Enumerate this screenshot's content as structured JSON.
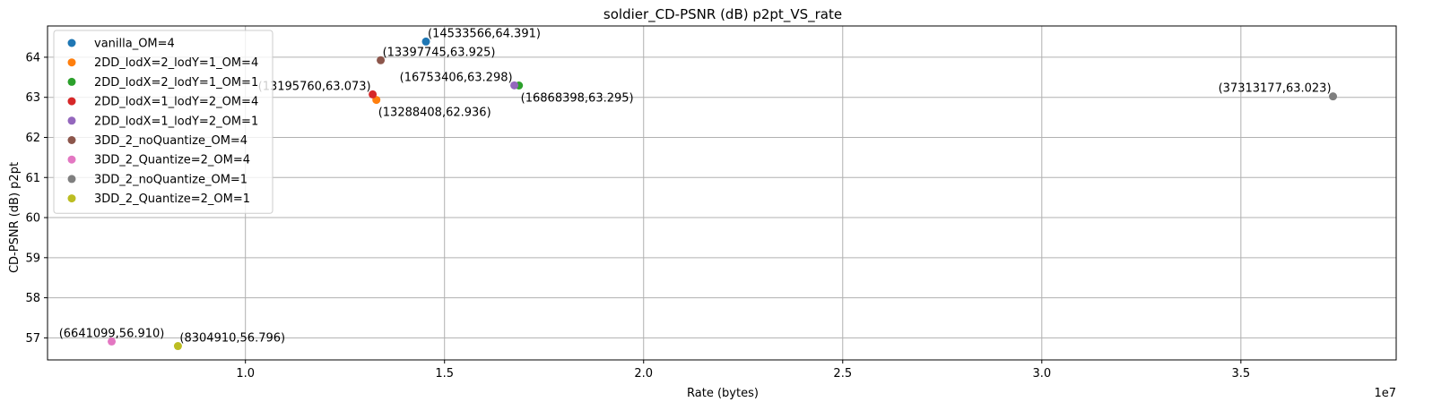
{
  "chart_data": {
    "type": "scatter",
    "title": "soldier_CD-PSNR (dB) p2pt_VS_rate",
    "xlabel": "Rate (bytes)",
    "ylabel": "CD-PSNR (dB) p2pt",
    "x_offset_label": "1e7",
    "xlim": [
      5030000,
      38900000
    ],
    "ylim": [
      56.45,
      64.78
    ],
    "x_ticks": [
      10000000,
      15000000,
      20000000,
      25000000,
      30000000,
      35000000
    ],
    "x_tick_labels": [
      "1.0",
      "1.5",
      "2.0",
      "2.5",
      "3.0",
      "3.5"
    ],
    "y_ticks": [
      57,
      58,
      59,
      60,
      61,
      62,
      63,
      64
    ],
    "y_tick_labels": [
      "57",
      "58",
      "59",
      "60",
      "61",
      "62",
      "63",
      "64"
    ],
    "grid": true,
    "legend_position": "top-left",
    "series": [
      {
        "name": "vanilla_OM=4",
        "color": "#1f77b4",
        "x": 14533566,
        "y": 64.391,
        "label": "(14533566,64.391)",
        "label_anchor": "start",
        "label_side": "above"
      },
      {
        "name": "2DD_lodX=2_lodY=1_OM=4",
        "color": "#ff7f0e",
        "x": 13288408,
        "y": 62.936,
        "label": "(13288408,62.936)",
        "label_anchor": "start",
        "label_side": "below"
      },
      {
        "name": "2DD_lodX=2_lodY=1_OM=1",
        "color": "#2ca02c",
        "x": 16868398,
        "y": 63.295,
        "label": "(16868398,63.295)",
        "label_anchor": "start",
        "label_side": "below"
      },
      {
        "name": "2DD_lodX=1_lodY=2_OM=4",
        "color": "#d62728",
        "x": 13195760,
        "y": 63.073,
        "label": "(13195760,63.073)",
        "label_anchor": "end",
        "label_side": "above"
      },
      {
        "name": "2DD_lodX=1_lodY=2_OM=1",
        "color": "#9467bd",
        "x": 16753406,
        "y": 63.298,
        "label": "(16753406,63.298)",
        "label_anchor": "end",
        "label_side": "above"
      },
      {
        "name": "3DD_2_noQuantize_OM=4",
        "color": "#8c564b",
        "x": 13397745,
        "y": 63.925,
        "label": "(13397745,63.925)",
        "label_anchor": "start",
        "label_side": "above"
      },
      {
        "name": "3DD_2_Quantize=2_OM=4",
        "color": "#e377c2",
        "x": 6641099,
        "y": 56.91,
        "label": "(6641099,56.910)",
        "label_anchor": "middle",
        "label_side": "above"
      },
      {
        "name": "3DD_2_noQuantize_OM=1",
        "color": "#7f7f7f",
        "x": 37313177,
        "y": 63.023,
        "label": "(37313177,63.023)",
        "label_anchor": "end",
        "label_side": "above"
      },
      {
        "name": "3DD_2_Quantize=2_OM=1",
        "color": "#bcbd22",
        "x": 8304910,
        "y": 56.796,
        "label": "(8304910,56.796)",
        "label_anchor": "start",
        "label_side": "above"
      }
    ]
  }
}
